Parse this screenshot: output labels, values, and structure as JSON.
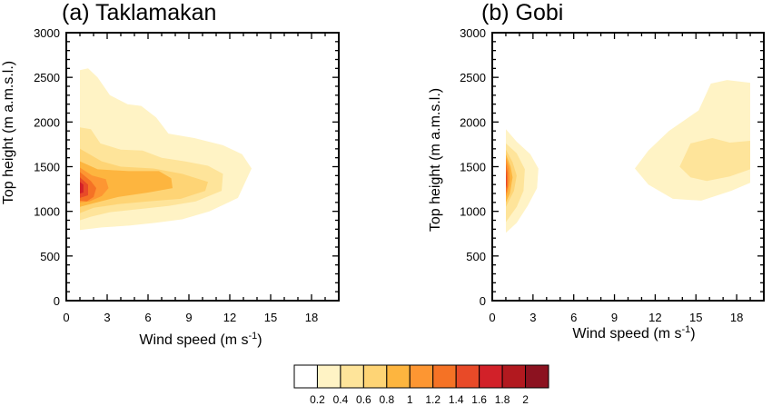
{
  "chart_data": [
    {
      "type": "heatmap",
      "title": "(a) Taklamakan",
      "xlabel": "Wind speed (m s",
      "xlabel_sup": "-1",
      "xlabel_close": ")",
      "ylabel": "Top height (m a.m.s.l.)",
      "xlim": [
        0,
        20
      ],
      "ylim": [
        0,
        3000
      ],
      "xticks": [
        "0",
        "3",
        "6",
        "9",
        "12",
        "15",
        "18"
      ],
      "yticks": [
        "0",
        "500",
        "1000",
        "1500",
        "2000",
        "2500",
        "3000"
      ],
      "contours": [
        {
          "level": 0.2,
          "points": [
            [
              1,
              1600
            ],
            [
              1,
              2580
            ],
            [
              1.6,
              2600
            ],
            [
              2.3,
              2500
            ],
            [
              3.2,
              2300
            ],
            [
              4.5,
              2200
            ],
            [
              5.5,
              2180
            ],
            [
              6.6,
              2050
            ],
            [
              7.5,
              1870
            ],
            [
              9.4,
              1820
            ],
            [
              11.5,
              1740
            ],
            [
              12.9,
              1640
            ],
            [
              13.6,
              1480
            ],
            [
              12.6,
              1150
            ],
            [
              10.5,
              1000
            ],
            [
              8.5,
              910
            ],
            [
              6.5,
              870
            ],
            [
              4.6,
              840
            ],
            [
              2.6,
              820
            ],
            [
              1,
              790
            ]
          ]
        },
        {
          "level": 0.4,
          "points": [
            [
              1,
              1430
            ],
            [
              1,
              1940
            ],
            [
              1.8,
              1920
            ],
            [
              2.5,
              1760
            ],
            [
              4,
              1690
            ],
            [
              5.6,
              1680
            ],
            [
              7,
              1600
            ],
            [
              8.7,
              1560
            ],
            [
              10.4,
              1510
            ],
            [
              11.5,
              1420
            ],
            [
              11.4,
              1230
            ],
            [
              9.5,
              1110
            ],
            [
              7.5,
              1060
            ],
            [
              5,
              1020
            ],
            [
              3.2,
              990
            ],
            [
              1.8,
              940
            ],
            [
              1,
              900
            ]
          ]
        },
        {
          "level": 0.6,
          "points": [
            [
              1,
              1300
            ],
            [
              1,
              1700
            ],
            [
              2.6,
              1560
            ],
            [
              4,
              1500
            ],
            [
              6.4,
              1480
            ],
            [
              8.5,
              1420
            ],
            [
              10.4,
              1330
            ],
            [
              10.2,
              1230
            ],
            [
              8.4,
              1140
            ],
            [
              6,
              1110
            ],
            [
              3.8,
              1080
            ],
            [
              2,
              1040
            ],
            [
              1,
              980
            ]
          ]
        },
        {
          "level": 0.8,
          "points": [
            [
              1,
              1200
            ],
            [
              1,
              1560
            ],
            [
              2.3,
              1470
            ],
            [
              4.6,
              1450
            ],
            [
              6.8,
              1450
            ],
            [
              7.7,
              1370
            ],
            [
              7.8,
              1260
            ],
            [
              6,
              1210
            ],
            [
              3.8,
              1160
            ],
            [
              2,
              1090
            ],
            [
              1,
              1050
            ]
          ]
        },
        {
          "level": 1.0,
          "points": [
            [
              1,
              1180
            ],
            [
              1,
              1490
            ],
            [
              1.9,
              1400
            ],
            [
              2.9,
              1360
            ],
            [
              3.1,
              1260
            ],
            [
              2.6,
              1170
            ],
            [
              1.7,
              1110
            ],
            [
              1,
              1100
            ]
          ]
        },
        {
          "level": 1.2,
          "points": [
            [
              1,
              1120
            ],
            [
              1,
              1440
            ],
            [
              1.8,
              1340
            ],
            [
              2.2,
              1260
            ],
            [
              2,
              1160
            ],
            [
              1.5,
              1110
            ]
          ]
        },
        {
          "level": 1.4,
          "points": [
            [
              1,
              1150
            ],
            [
              1,
              1380
            ],
            [
              1.6,
              1300
            ],
            [
              1.6,
              1180
            ]
          ]
        },
        {
          "level": 1.6,
          "points": [
            [
              1,
              1200
            ],
            [
              1,
              1330
            ],
            [
              1.25,
              1300
            ],
            [
              1.25,
              1210
            ]
          ]
        }
      ]
    },
    {
      "type": "heatmap",
      "title": "(b) Gobi",
      "xlabel": "Wind speed (m s",
      "xlabel_sup": "-1",
      "xlabel_close": ")",
      "ylabel": "Top height (m a.m.s.l.)",
      "xlim": [
        0,
        20
      ],
      "ylim": [
        0,
        3000
      ],
      "xticks": [
        "0",
        "3",
        "6",
        "9",
        "12",
        "15",
        "18"
      ],
      "yticks": [
        "0",
        "500",
        "1000",
        "1500",
        "2000",
        "2500",
        "3000"
      ],
      "contours": [
        {
          "level": 0.2,
          "points": [
            [
              1,
              1000
            ],
            [
              1,
              1920
            ],
            [
              1.8,
              1780
            ],
            [
              2.8,
              1640
            ],
            [
              3.4,
              1480
            ],
            [
              3.3,
              1260
            ],
            [
              2.6,
              1060
            ],
            [
              1.8,
              870
            ],
            [
              1,
              760
            ]
          ]
        },
        {
          "level": 0.2,
          "points": [
            [
              10.5,
              1480
            ],
            [
              11.5,
              1680
            ],
            [
              13,
              1900
            ],
            [
              15.2,
              2130
            ],
            [
              16.1,
              2430
            ],
            [
              17.3,
              2470
            ],
            [
              19,
              2440
            ],
            [
              19,
              1320
            ],
            [
              17.6,
              1230
            ],
            [
              15.4,
              1120
            ],
            [
              13.3,
              1140
            ],
            [
              11.5,
              1300
            ]
          ]
        },
        {
          "level": 0.4,
          "points": [
            [
              1,
              1000
            ],
            [
              1,
              1760
            ],
            [
              1.8,
              1650
            ],
            [
              2.4,
              1470
            ],
            [
              2.3,
              1230
            ],
            [
              1.8,
              1050
            ],
            [
              1,
              880
            ]
          ]
        },
        {
          "level": 0.4,
          "points": [
            [
              13.8,
              1500
            ],
            [
              14.6,
              1760
            ],
            [
              16.2,
              1820
            ],
            [
              17.5,
              1770
            ],
            [
              19,
              1790
            ],
            [
              19,
              1470
            ],
            [
              17.5,
              1390
            ],
            [
              15.8,
              1340
            ],
            [
              14.6,
              1380
            ]
          ]
        },
        {
          "level": 0.6,
          "points": [
            [
              1,
              1080
            ],
            [
              1,
              1690
            ],
            [
              1.5,
              1550
            ],
            [
              1.8,
              1400
            ],
            [
              1.6,
              1230
            ],
            [
              1,
              1050
            ]
          ]
        },
        {
          "level": 0.8,
          "points": [
            [
              1,
              1120
            ],
            [
              1,
              1640
            ],
            [
              1.35,
              1500
            ],
            [
              1.5,
              1380
            ],
            [
              1.3,
              1200
            ],
            [
              1,
              1100
            ]
          ]
        },
        {
          "level": 1.0,
          "points": [
            [
              1,
              1170
            ],
            [
              1,
              1600
            ],
            [
              1.25,
              1480
            ],
            [
              1.3,
              1350
            ],
            [
              1.15,
              1230
            ],
            [
              1,
              1160
            ]
          ]
        },
        {
          "level": 1.2,
          "points": [
            [
              1,
              1200
            ],
            [
              1,
              1540
            ],
            [
              1.15,
              1430
            ],
            [
              1.15,
              1280
            ]
          ]
        },
        {
          "level": 1.4,
          "points": [
            [
              1,
              1260
            ],
            [
              1,
              1470
            ],
            [
              1.08,
              1380
            ],
            [
              1.08,
              1300
            ]
          ]
        }
      ]
    }
  ],
  "colorbar": {
    "levels": [
      "0.2",
      "0.4",
      "0.6",
      "0.8",
      "1",
      "1.2",
      "1.4",
      "1.6",
      "1.8",
      "2"
    ],
    "colors": [
      "#ffffff",
      "#fff3c5",
      "#fee49a",
      "#fed475",
      "#fdb53f",
      "#fd9632",
      "#f57225",
      "#e84a28",
      "#d22129",
      "#b2191f",
      "#8c1220"
    ]
  }
}
